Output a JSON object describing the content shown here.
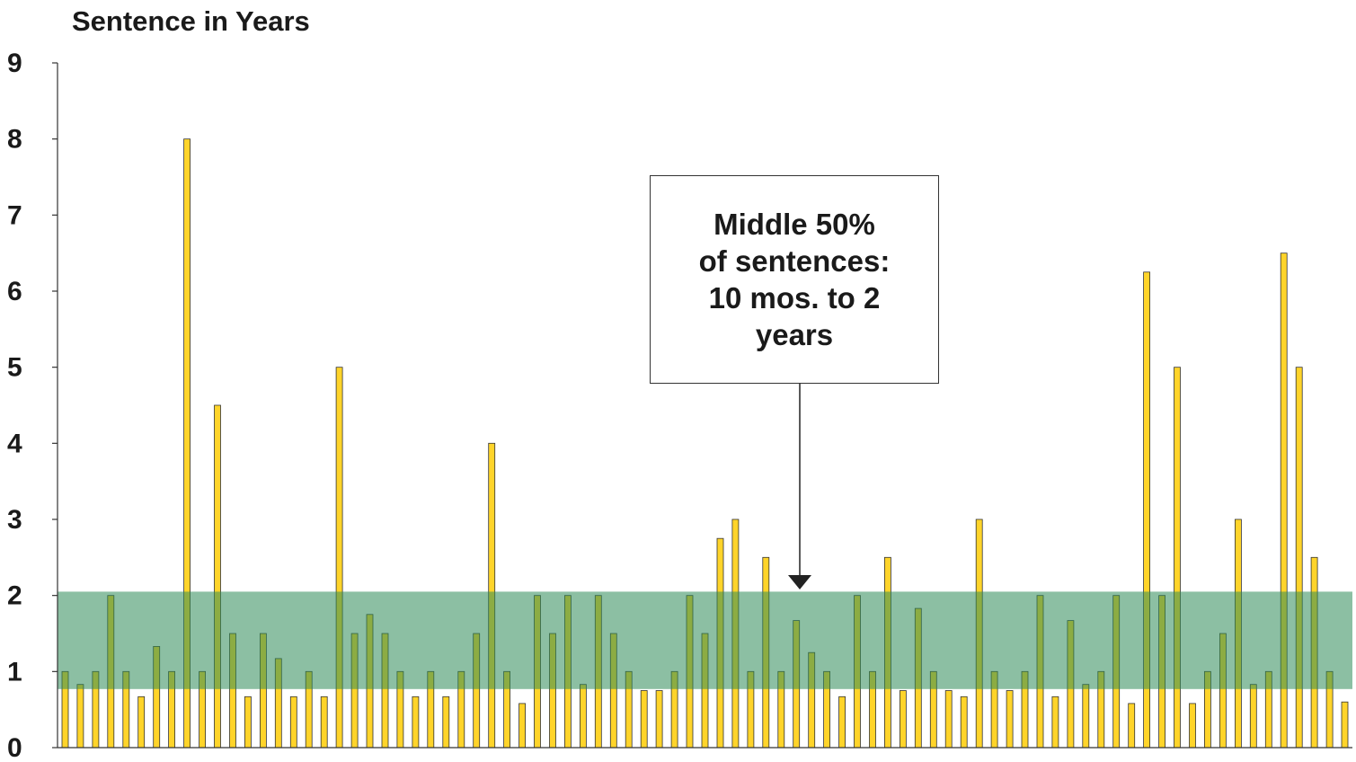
{
  "chart_data": {
    "type": "bar",
    "title": "Sentence in Years",
    "xlabel": "",
    "ylabel": "",
    "ylim": [
      0,
      9
    ],
    "yticks": [
      "0",
      "1",
      "2",
      "3",
      "4",
      "5",
      "6",
      "7",
      "8",
      "9"
    ],
    "values": [
      1,
      0.83,
      1,
      2,
      1,
      0.67,
      1.33,
      1,
      8,
      1,
      4.5,
      1.5,
      0.67,
      1.5,
      1.17,
      0.67,
      1,
      0.67,
      5,
      1.5,
      1.75,
      1.5,
      1,
      0.67,
      1,
      0.67,
      1,
      1.5,
      4,
      1,
      0.58,
      2,
      1.5,
      2,
      0.83,
      2,
      1.5,
      1,
      0.75,
      0.75,
      1,
      2,
      1.5,
      2.75,
      3,
      1,
      2.5,
      1,
      1.67,
      1.25,
      1,
      0.67,
      2,
      1,
      2.5,
      0.75,
      1.83,
      1,
      0.75,
      0.67,
      3,
      1,
      0.75,
      1,
      2,
      0.67,
      1.67,
      0.83,
      1,
      2,
      0.58,
      6.25,
      2,
      5,
      0.58,
      1,
      1.5,
      3,
      0.83,
      1,
      6.5,
      5,
      2.5,
      1,
      0.6
    ],
    "band": {
      "from": 0.77,
      "to": 2.05,
      "label": "Middle 50% of sentences: 10 mos. to 2 years"
    },
    "bar_color": "#FFD42A",
    "bar_stroke": "#333333",
    "band_color": "#2E8B57",
    "grid": false
  },
  "callout": {
    "lines": [
      "Middle 50%",
      "of sentences:",
      "10 mos. to 2",
      "years"
    ]
  }
}
